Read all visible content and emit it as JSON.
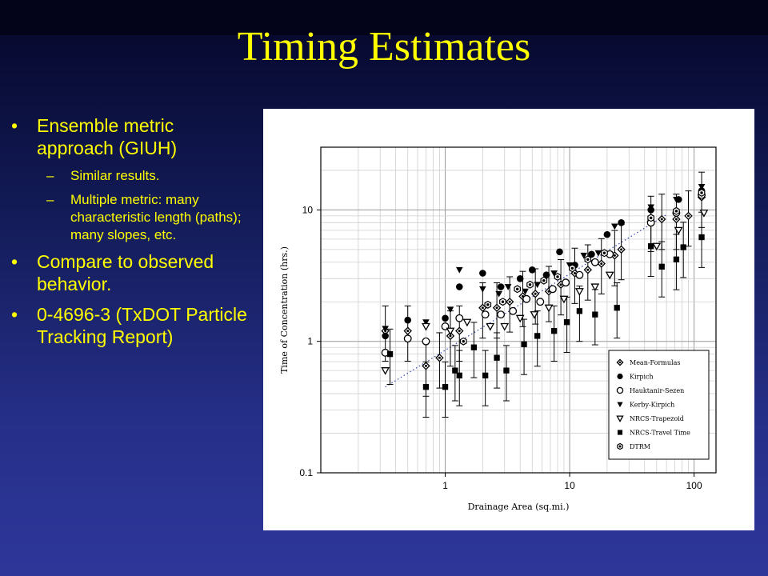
{
  "slide": {
    "title": "Timing Estimates",
    "bullets": [
      {
        "text": "Ensemble metric approach (GIUH)",
        "subs": [
          "Similar results.",
          "Multiple metric: many characteristic length (paths); many slopes, etc."
        ]
      },
      {
        "text": "Compare to observed behavior.",
        "subs": []
      },
      {
        "text": "0-4696-3 (TxDOT Particle Tracking Report)",
        "subs": []
      }
    ],
    "bullet_glyph": "•",
    "sub_glyph": "–"
  },
  "chart_data": {
    "type": "scatter",
    "xscale": "log",
    "yscale": "log",
    "xlim": [
      0.1,
      150
    ],
    "ylim": [
      0.1,
      30
    ],
    "x_ticks": [
      "1",
      "10",
      "100"
    ],
    "y_ticks": [
      "0.1",
      "1",
      "10"
    ],
    "xlabel": "Drainage Area (sq.mi.)",
    "ylabel": "Time of Concentration (hrs.)",
    "grid": true,
    "legend_position": "bottom-right",
    "series": [
      {
        "name": "Mean-Formulas",
        "marker": "diamond-dot",
        "points": [
          [
            0.33,
            1.2
          ],
          [
            0.5,
            1.2
          ],
          [
            0.7,
            0.65
          ],
          [
            0.9,
            0.75
          ],
          [
            1.1,
            1.1
          ],
          [
            1.3,
            1.2
          ],
          [
            2.0,
            1.8
          ],
          [
            2.6,
            1.8
          ],
          [
            3.3,
            2.0
          ],
          [
            4.2,
            2.2
          ],
          [
            5.3,
            2.3
          ],
          [
            6.8,
            2.4
          ],
          [
            8.5,
            2.7
          ],
          [
            11,
            3.3
          ],
          [
            14,
            3.5
          ],
          [
            18,
            3.9
          ],
          [
            23,
            4.5
          ],
          [
            26,
            5.0
          ],
          [
            45,
            8.2
          ],
          [
            55,
            8.5
          ],
          [
            72,
            8.5
          ],
          [
            90,
            9.0
          ],
          [
            115,
            12.5
          ]
        ]
      },
      {
        "name": "Kirpich",
        "marker": "circle-filled",
        "points": [
          [
            0.33,
            1.1
          ],
          [
            0.5,
            1.45
          ],
          [
            1.0,
            1.5
          ],
          [
            1.3,
            2.6
          ],
          [
            2.0,
            3.3
          ],
          [
            2.8,
            2.6
          ],
          [
            4.0,
            3.0
          ],
          [
            5.0,
            3.5
          ],
          [
            6.5,
            3.2
          ],
          [
            8.3,
            4.8
          ],
          [
            11,
            3.8
          ],
          [
            15,
            4.6
          ],
          [
            20,
            6.5
          ],
          [
            26,
            8.0
          ],
          [
            45,
            10
          ],
          [
            75,
            12
          ],
          [
            115,
            14
          ]
        ]
      },
      {
        "name": "Hauktanir-Sezen",
        "marker": "circle-open",
        "points": [
          [
            0.33,
            0.82
          ],
          [
            0.5,
            1.05
          ],
          [
            0.7,
            1.0
          ],
          [
            1.0,
            1.3
          ],
          [
            1.3,
            1.5
          ],
          [
            2.1,
            1.6
          ],
          [
            2.8,
            1.6
          ],
          [
            3.5,
            1.7
          ],
          [
            4.5,
            2.1
          ],
          [
            5.8,
            2.0
          ],
          [
            7.3,
            2.5
          ],
          [
            9.3,
            2.8
          ],
          [
            12,
            3.2
          ],
          [
            16,
            4.0
          ],
          [
            21,
            4.6
          ],
          [
            45,
            8.0
          ],
          [
            72,
            9.5
          ],
          [
            115,
            13
          ]
        ]
      },
      {
        "name": "Kerby-Kirpich",
        "marker": "triangle-down-filled",
        "points": [
          [
            0.33,
            1.25
          ],
          [
            0.7,
            1.4
          ],
          [
            1.1,
            1.75
          ],
          [
            1.3,
            3.5
          ],
          [
            2.0,
            2.5
          ],
          [
            2.7,
            2.3
          ],
          [
            3.2,
            2.6
          ],
          [
            4.4,
            2.4
          ],
          [
            5.5,
            2.7
          ],
          [
            7.5,
            3.3
          ],
          [
            10,
            3.8
          ],
          [
            13,
            4.5
          ],
          [
            17,
            4.7
          ],
          [
            23,
            7.5
          ],
          [
            45,
            10.5
          ],
          [
            72,
            12
          ],
          [
            115,
            15
          ]
        ]
      },
      {
        "name": "NRCS-Trapezoid",
        "marker": "triangle-down-open",
        "points": [
          [
            0.33,
            0.6
          ],
          [
            0.7,
            1.3
          ],
          [
            1.1,
            1.2
          ],
          [
            1.5,
            1.4
          ],
          [
            2.3,
            1.3
          ],
          [
            3.0,
            1.3
          ],
          [
            4.0,
            1.5
          ],
          [
            5.2,
            1.6
          ],
          [
            6.8,
            1.8
          ],
          [
            9.0,
            2.1
          ],
          [
            12,
            2.4
          ],
          [
            16,
            2.6
          ],
          [
            21,
            3.2
          ],
          [
            50,
            5.3
          ],
          [
            75,
            7.0
          ],
          [
            120,
            9.5
          ]
        ]
      },
      {
        "name": "NRCS-Travel Time",
        "marker": "square-filled",
        "points": [
          [
            0.36,
            0.8
          ],
          [
            0.7,
            0.45
          ],
          [
            1.0,
            0.45
          ],
          [
            1.2,
            0.6
          ],
          [
            1.3,
            0.55
          ],
          [
            1.7,
            0.9
          ],
          [
            2.1,
            0.55
          ],
          [
            2.6,
            0.75
          ],
          [
            3.1,
            0.6
          ],
          [
            4.3,
            0.95
          ],
          [
            5.5,
            1.1
          ],
          [
            7.5,
            1.2
          ],
          [
            9.5,
            1.4
          ],
          [
            12,
            1.7
          ],
          [
            16,
            1.6
          ],
          [
            24,
            1.8
          ],
          [
            45,
            5.3
          ],
          [
            55,
            3.7
          ],
          [
            72,
            4.2
          ],
          [
            82,
            5.2
          ],
          [
            115,
            6.2
          ]
        ]
      },
      {
        "name": "DTRM",
        "marker": "hexagon-dot",
        "points": [
          [
            1.4,
            1.0
          ],
          [
            2.2,
            1.9
          ],
          [
            2.9,
            2.0
          ],
          [
            3.8,
            2.5
          ],
          [
            4.8,
            2.7
          ],
          [
            6.2,
            2.9
          ],
          [
            8.0,
            3.1
          ],
          [
            10.5,
            3.6
          ],
          [
            14,
            4.2
          ],
          [
            19,
            4.7
          ],
          [
            45,
            8.7
          ],
          [
            72,
            9.8
          ],
          [
            115,
            13.5
          ]
        ]
      }
    ],
    "trendline": {
      "style": "dotted",
      "points": [
        [
          0.33,
          0.45
        ],
        [
          60,
          9.2
        ]
      ]
    }
  }
}
